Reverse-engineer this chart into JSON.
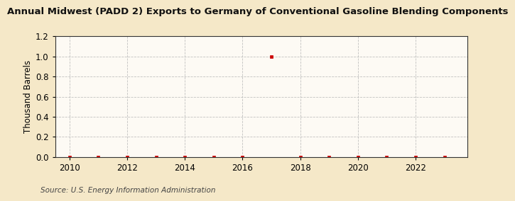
{
  "title": "Annual Midwest (PADD 2) Exports to Germany of Conventional Gasoline Blending Components",
  "ylabel": "Thousand Barrels",
  "source": "Source: U.S. Energy Information Administration",
  "fig_background_color": "#f5e8c8",
  "plot_background_color": "#fdfaf4",
  "years": [
    2010,
    2011,
    2012,
    2013,
    2014,
    2015,
    2016,
    2017,
    2018,
    2019,
    2020,
    2021,
    2022,
    2023
  ],
  "values": [
    0,
    0,
    0,
    0,
    0,
    0,
    0,
    1.0,
    0,
    0,
    0,
    0,
    0,
    0
  ],
  "xlim": [
    2009.5,
    2023.8
  ],
  "ylim": [
    0.0,
    1.2
  ],
  "yticks": [
    0.0,
    0.2,
    0.4,
    0.6,
    0.8,
    1.0,
    1.2
  ],
  "xticks": [
    2010,
    2012,
    2014,
    2016,
    2018,
    2020,
    2022
  ],
  "marker_color": "#cc0000",
  "marker_size": 3.5,
  "grid_color": "#bbbbbb",
  "title_fontsize": 9.5,
  "axis_fontsize": 8.5,
  "source_fontsize": 7.5
}
